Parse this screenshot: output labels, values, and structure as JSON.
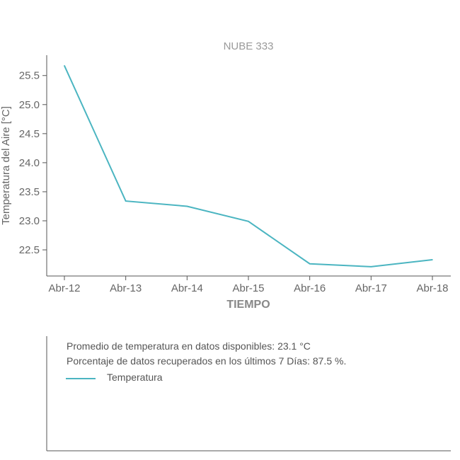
{
  "colors": {
    "series": "#4bb5c1",
    "axis": "#555555",
    "title": "#9a9a9a"
  },
  "chart_data": {
    "type": "line",
    "title": "NUBE 333",
    "xlabel": "TIEMPO",
    "ylabel": "Temperatura del Aire [°C]",
    "categories": [
      "Abr-12",
      "Abr-13",
      "Abr-14",
      "Abr-15",
      "Abr-16",
      "Abr-17",
      "Abr-18"
    ],
    "series": [
      {
        "name": "Temperatura",
        "values": [
          25.67,
          23.34,
          23.25,
          22.99,
          22.26,
          22.21,
          22.33
        ]
      }
    ],
    "yticks": [
      "22.5",
      "23.0",
      "23.5",
      "24.0",
      "24.5",
      "25.0",
      "25.5"
    ],
    "ytick_values": [
      22.5,
      23.0,
      23.5,
      24.0,
      24.5,
      25.0,
      25.5
    ],
    "ylim": [
      22.05,
      25.85
    ],
    "grid": false,
    "legend": "bottom-left"
  },
  "info": {
    "average_text": "Promedio de temperatura en datos disponibles: 23.1 °C",
    "percent_text": "Porcentaje de datos recuperados en los últimos 7 Días: 87.5 %."
  }
}
